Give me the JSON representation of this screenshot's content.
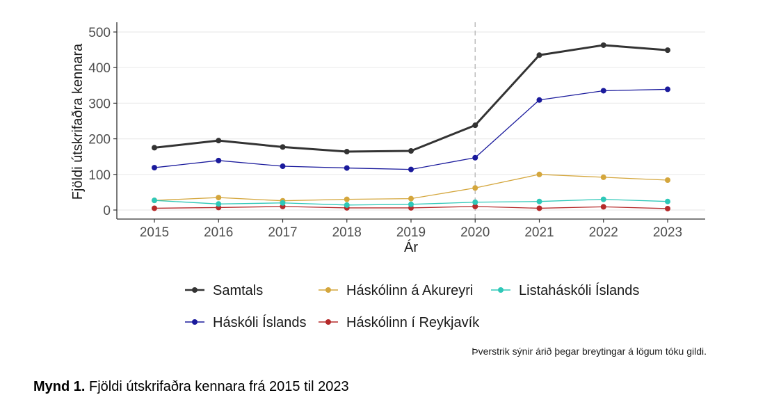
{
  "chart_data": {
    "type": "line",
    "x": [
      2015,
      2016,
      2017,
      2018,
      2019,
      2020,
      2021,
      2022,
      2023
    ],
    "xlabel": "Ár",
    "ylabel": "Fjöldi útskrifaðra kennara",
    "ylim": [
      0,
      500
    ],
    "yticks": [
      0,
      100,
      200,
      300,
      400,
      500
    ],
    "grid": true,
    "legend_position": "bottom",
    "vline": {
      "x": 2020,
      "style": "dashed"
    },
    "series": [
      {
        "name": "Samtals",
        "color": "#333333",
        "width": 3,
        "values": [
          175,
          195,
          177,
          164,
          166,
          238,
          435,
          463,
          449
        ]
      },
      {
        "name": "Háskóli Íslands",
        "color": "#1a1a9c",
        "width": 1.3,
        "values": [
          119,
          139,
          123,
          118,
          114,
          147,
          309,
          335,
          339
        ]
      },
      {
        "name": "Háskólinn á Akureyri",
        "color": "#d4a63c",
        "width": 1.3,
        "values": [
          27,
          35,
          26,
          30,
          32,
          62,
          100,
          92,
          84
        ]
      },
      {
        "name": "Háskólinn í Reykjavík",
        "color": "#b52a2a",
        "width": 1.3,
        "values": [
          5,
          7,
          10,
          6,
          6,
          10,
          5,
          9,
          4
        ]
      },
      {
        "name": "Listaháskóli Íslands",
        "color": "#2ec8b8",
        "width": 1.3,
        "values": [
          27,
          17,
          20,
          14,
          16,
          22,
          24,
          30,
          24
        ]
      }
    ],
    "legend_order": [
      "Samtals",
      "Háskólinn á Akureyri",
      "Listaháskóli Íslands",
      "Háskóli Íslands",
      "Háskólinn í Reykjavík"
    ]
  },
  "note": "Þverstrik sýnir árið þegar breytingar á lögum tóku gildi.",
  "caption": {
    "label": "Mynd 1.",
    "text": "Fjöldi útskrifaðra kennara frá 2015 til 2023"
  }
}
